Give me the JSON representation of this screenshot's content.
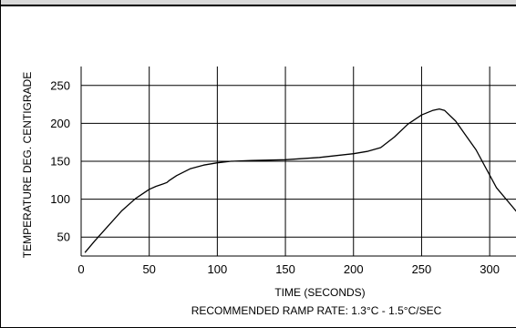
{
  "chart_data": {
    "type": "line",
    "title": "",
    "xlabel": "TIME (SECONDS)",
    "ylabel": "TEMPERATURE DEG. CENTIGRADE",
    "note": "RECOMMENDED RAMP RATE: 1.3°C - 1.5°C/SEC",
    "xlim": [
      0,
      320
    ],
    "ylim": [
      25,
      275
    ],
    "x_ticks": [
      0,
      50,
      100,
      150,
      200,
      250,
      300
    ],
    "y_ticks": [
      50,
      100,
      150,
      200,
      250
    ],
    "x_grid": [
      0,
      50,
      100,
      150,
      200,
      250,
      300
    ],
    "y_grid": [
      50,
      100,
      150,
      200,
      250
    ],
    "grid": true,
    "legend": "none",
    "series": [
      {
        "x": [
          3,
          10,
          20,
          30,
          40,
          50,
          55,
          60,
          63,
          65,
          70,
          80,
          90,
          100,
          110,
          125,
          150,
          175,
          200,
          210,
          220,
          230,
          240,
          250,
          258,
          263,
          267,
          275,
          290,
          305,
          320
        ],
        "y": [
          30,
          45,
          65,
          85,
          101,
          113,
          117,
          120,
          122,
          125,
          131,
          140,
          145,
          148,
          150,
          151,
          152,
          155,
          160,
          163,
          168,
          182,
          199,
          211,
          217,
          219,
          217,
          203,
          165,
          115,
          83
        ]
      }
    ],
    "colors": {
      "line": "#000000",
      "grid": "#000000",
      "background": "#ffffff",
      "band": "#d9d9d9"
    }
  }
}
